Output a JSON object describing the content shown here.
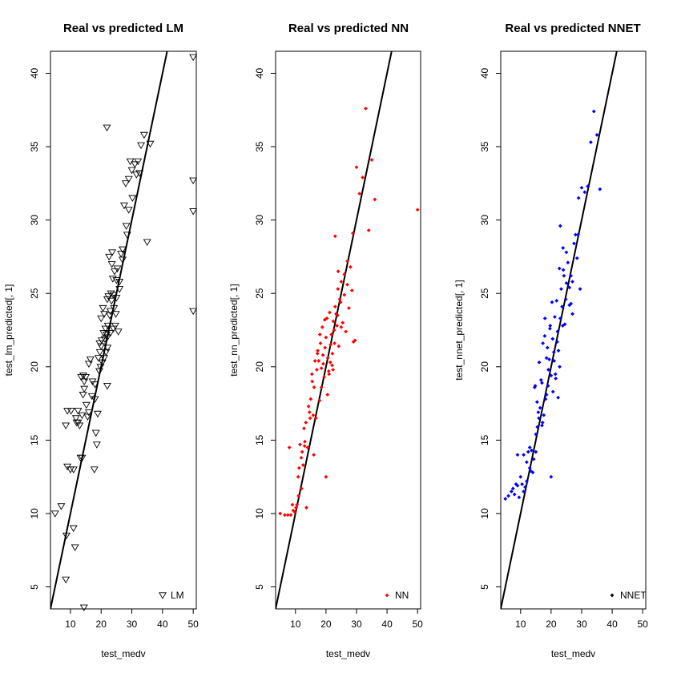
{
  "chart_data": [
    {
      "type": "scatter",
      "title": "Real vs predicted LM",
      "xlabel": "test_medv",
      "ylabel": "test_lm_predicted[, 1]",
      "xlim": [
        3.5,
        51
      ],
      "ylim": [
        3.5,
        41.5
      ],
      "xticks": [
        10,
        20,
        30,
        40,
        50
      ],
      "yticks": [
        5,
        10,
        15,
        20,
        25,
        30,
        35,
        40
      ],
      "marker": "triangle-down",
      "color": "#000000",
      "legend": {
        "label": "LM",
        "position": "bottom-right"
      },
      "reference_line": {
        "slope": 1,
        "intercept": 0
      },
      "series": [
        {
          "name": "LM",
          "x": [
            5,
            7,
            8.5,
            8.7,
            9,
            10,
            10.2,
            11,
            11.5,
            11.8,
            12,
            12.5,
            13,
            13.3,
            13.8,
            14.1,
            14.5,
            14.2,
            13.8,
            14.5,
            15,
            15.2,
            15.6,
            16,
            16.5,
            17,
            17.2,
            17.8,
            18,
            18.3,
            18.6,
            18.9,
            19.1,
            19.4,
            19.6,
            19.8,
            20,
            20.2,
            20.4,
            20.6,
            20.8,
            21,
            21.2,
            21.4,
            21.6,
            21.8,
            22,
            22,
            22.2,
            22.4,
            22.6,
            22.8,
            23,
            23.2,
            23.4,
            23.6,
            23.8,
            24,
            24.2,
            24.4,
            24.6,
            24.8,
            25,
            25.3,
            25.6,
            26,
            26.5,
            27,
            27.5,
            28,
            28.5,
            29,
            29.5,
            30,
            31,
            31.5,
            32,
            33,
            34,
            35,
            36,
            21.9,
            50,
            50,
            50,
            50,
            14.4,
            11,
            9,
            8.5,
            12.5,
            13.5,
            18,
            20,
            23,
            27,
            29,
            25,
            16,
            22,
            24,
            21,
            19.5,
            26,
            28.2,
            30.2,
            32.5,
            23.5,
            22.1
          ],
          "y": [
            10,
            10.5,
            5.5,
            8.5,
            13.2,
            13,
            17,
            9,
            7.7,
            16.5,
            16.2,
            17,
            16,
            13.8,
            16.7,
            18.1,
            19,
            19.4,
            13.8,
            18.5,
            19.3,
            17.4,
            16.6,
            20.2,
            20.5,
            18,
            19,
            13,
            18.8,
            15.5,
            14.7,
            16.8,
            20.6,
            19.7,
            21,
            20,
            23.3,
            21.8,
            20.3,
            24,
            22.3,
            23.6,
            21.9,
            22.6,
            21,
            22.2,
            22,
            24.6,
            22.8,
            24.8,
            27.5,
            23.5,
            23.8,
            25,
            24.5,
            27.8,
            26,
            22.6,
            24,
            26.5,
            22.8,
            23.6,
            24.7,
            26.7,
            22.4,
            25.3,
            27.7,
            28,
            31,
            32.5,
            29,
            32.8,
            34,
            33.4,
            33.8,
            33.1,
            34,
            35.1,
            35.8,
            28.5,
            35.2,
            36.3,
            41.1,
            32.7,
            30.6,
            23.8,
            3.6,
            13,
            17,
            16,
            16.2,
            19.3,
            17.8,
            21.4,
            22.3,
            27.3,
            30.7,
            25.9,
            16.9,
            18.7,
            24.9,
            20.6,
            21.6,
            25.8,
            29.6,
            31.5,
            33.2,
            27,
            21.3
          ]
        }
      ]
    },
    {
      "type": "scatter",
      "title": "Real vs predicted NN",
      "xlabel": "test_medv",
      "ylabel": "test_nn_predicted[, 1]",
      "xlim": [
        3.5,
        51
      ],
      "ylim": [
        3.5,
        41.5
      ],
      "xticks": [
        10,
        20,
        30,
        40,
        50
      ],
      "yticks": [
        5,
        10,
        15,
        20,
        25,
        30,
        35,
        40
      ],
      "marker": "diamond",
      "color": "#ff0000",
      "legend": {
        "label": "NN",
        "position": "bottom-right"
      },
      "reference_line": {
        "slope": 1,
        "intercept": 0
      },
      "series": [
        {
          "name": "NN",
          "x": [
            5,
            6.5,
            7.5,
            8.5,
            9.3,
            9.8,
            10.2,
            10.5,
            10.9,
            11.2,
            11.5,
            11.9,
            12.2,
            12.5,
            12.8,
            13.1,
            13.4,
            13.6,
            14,
            14.3,
            14.6,
            15,
            15.4,
            15.8,
            16.1,
            16.4,
            16.7,
            17,
            17.3,
            17.6,
            17.9,
            18.2,
            18.5,
            18.8,
            19.1,
            19.4,
            19.7,
            20,
            20.3,
            20.6,
            20.9,
            21.2,
            21.5,
            21.8,
            22.1,
            22.4,
            22.7,
            23,
            23.3,
            23.6,
            23.9,
            24.2,
            24.5,
            25,
            25.5,
            26,
            26.5,
            27,
            27.5,
            28,
            28.5,
            29,
            29.5,
            30,
            31,
            32,
            33,
            34,
            35,
            36,
            50,
            20,
            19,
            21,
            22,
            16,
            18,
            24,
            23,
            25,
            26,
            27,
            22.3,
            21.4,
            19.6,
            17.2,
            15.5,
            13,
            12,
            14.8,
            18.5,
            20.5,
            22.8,
            23.8,
            24.8,
            28.8,
            9,
            11,
            8
          ],
          "y": [
            10,
            9.9,
            9.9,
            9.9,
            10.2,
            10.1,
            10.4,
            10.6,
            12.5,
            13.1,
            14.7,
            13.8,
            14.2,
            13.3,
            15.8,
            14.9,
            16.2,
            10.4,
            14.5,
            17.3,
            16.9,
            17.8,
            19.5,
            16.7,
            18.6,
            20.4,
            16.5,
            19.8,
            21.1,
            20.4,
            17.7,
            21.6,
            18.6,
            22.7,
            20.2,
            19.3,
            21.3,
            22,
            23.3,
            20.6,
            19.7,
            23.7,
            21.5,
            22.2,
            20.9,
            23.1,
            22.5,
            24.1,
            23.6,
            22.8,
            25.3,
            21.4,
            24.6,
            25.8,
            23,
            26.3,
            22.4,
            25.6,
            24,
            26.8,
            25.2,
            21.7,
            21.8,
            33.6,
            31.8,
            32.9,
            37.6,
            29.3,
            34.1,
            31.4,
            30.7,
            12.5,
            20.8,
            19.5,
            20.1,
            14,
            22.2,
            26.5,
            28.9,
            22.7,
            24.9,
            27.2,
            19.8,
            20.3,
            23.2,
            20.9,
            19,
            14.6,
            11.7,
            16.5,
            19.9,
            18.1,
            21.6,
            23.5,
            24.4,
            29.1,
            10.6,
            11.2,
            14.5
          ]
        }
      ]
    },
    {
      "type": "scatter",
      "title": "Real vs predicted NNET",
      "xlabel": "test_medv",
      "ylabel": "test_nnet_predicted[, 1]",
      "xlim": [
        3.5,
        51
      ],
      "ylim": [
        3.5,
        41.5
      ],
      "xticks": [
        10,
        20,
        30,
        40,
        50
      ],
      "yticks": [
        5,
        10,
        15,
        20,
        25,
        30,
        35,
        40
      ],
      "marker": "diamond",
      "color": "#0000ff",
      "legend": {
        "label": "NNET",
        "position": "bottom-right",
        "marker_color": "#000000"
      },
      "reference_line": {
        "slope": 1,
        "intercept": 0
      },
      "series": [
        {
          "name": "NNET",
          "x": [
            5,
            6,
            7,
            7.5,
            8,
            8.5,
            9,
            9.5,
            10,
            10.5,
            11,
            11.5,
            12,
            12.5,
            13,
            13.3,
            13.6,
            14,
            14.3,
            14.6,
            15,
            15.4,
            15.8,
            16.1,
            16.4,
            16.7,
            17,
            17.3,
            17.6,
            17.9,
            18.2,
            18.5,
            18.8,
            19.1,
            19.4,
            19.7,
            20,
            20.3,
            20.6,
            20.9,
            21.2,
            21.5,
            21.8,
            22.1,
            22.4,
            22.7,
            23,
            23.3,
            23.6,
            23.9,
            24.2,
            24.5,
            25,
            25.5,
            26,
            26.5,
            27,
            27.5,
            28,
            28.5,
            29,
            29.5,
            30,
            31,
            32,
            33,
            34,
            35,
            36,
            20,
            19,
            21,
            22,
            16,
            18,
            24,
            23,
            25,
            26,
            27,
            22.3,
            21.4,
            19.6,
            17.2,
            15.5,
            13,
            12,
            14.8,
            18.5,
            20.5,
            22.8,
            23.8,
            24.8,
            28.8,
            9,
            11,
            15,
            17,
            26.5
          ],
          "y": [
            11,
            11.2,
            11.5,
            11.7,
            11.3,
            12,
            14,
            11.1,
            12.5,
            12,
            11.5,
            11.8,
            13.5,
            14.2,
            13.1,
            12.9,
            14.3,
            12.8,
            13.7,
            18.6,
            15.4,
            17.6,
            16.9,
            20.3,
            17.2,
            19.1,
            18.9,
            21.6,
            16.7,
            22.1,
            17.8,
            20.6,
            21.3,
            19.8,
            20.5,
            22.8,
            19.4,
            24.4,
            18.3,
            21,
            23.4,
            19.2,
            24.5,
            22.4,
            21.1,
            26.7,
            23.3,
            25.3,
            24.1,
            28.1,
            26.2,
            22.9,
            25.7,
            27.1,
            25.4,
            24.3,
            23.6,
            28.4,
            29,
            27.4,
            31.5,
            25.3,
            32.2,
            31.9,
            32.3,
            35.3,
            37.4,
            35.8,
            32.1,
            12.5,
            18.7,
            20.4,
            21.7,
            16.5,
            23.3,
            26.6,
            29.6,
            27.8,
            24.2,
            25.8,
            17.9,
            19.5,
            22.6,
            16.2,
            15.9,
            14.5,
            12.2,
            18.7,
            18.1,
            21.9,
            20,
            22.8,
            24.6,
            29,
            11.9,
            14,
            14.2,
            16,
            26.2
          ]
        }
      ]
    }
  ]
}
